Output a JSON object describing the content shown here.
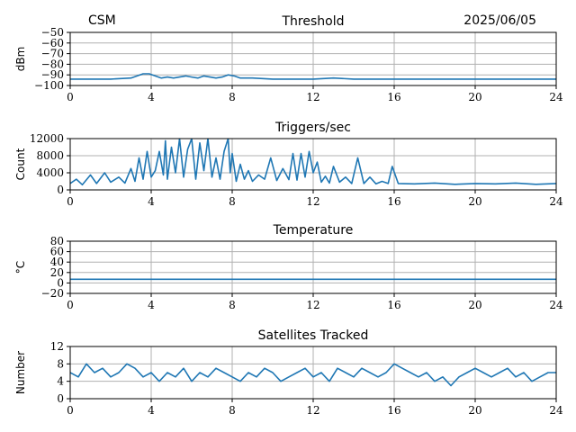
{
  "header": {
    "left": "CSM",
    "right": "2025/06/05"
  },
  "colors": {
    "series": "#1f77b4",
    "grid": "#b0b0b0"
  },
  "chart_data": [
    {
      "type": "line",
      "title": "Threshold",
      "ylabel": "dBm",
      "xlim": [
        0,
        24
      ],
      "ylim": [
        -100,
        -50
      ],
      "xticks": [
        0,
        4,
        8,
        12,
        16,
        20,
        24
      ],
      "yticks": [
        -100,
        -90,
        -80,
        -70,
        -60,
        -50
      ],
      "grid": true,
      "series": [
        {
          "x": [
            0,
            1,
            2,
            3,
            3.3,
            3.6,
            3.9,
            4.2,
            4.5,
            4.8,
            5.1,
            5.4,
            5.7,
            6.0,
            6.3,
            6.6,
            6.9,
            7.2,
            7.5,
            7.8,
            8.1,
            8.4,
            8.7,
            9,
            10,
            11,
            12,
            13,
            14,
            16,
            18,
            20,
            22,
            24
          ],
          "y": [
            -94,
            -94,
            -94,
            -93,
            -91,
            -89,
            -89,
            -91,
            -93,
            -92,
            -93,
            -92,
            -91,
            -92,
            -93,
            -91,
            -92,
            -93,
            -92,
            -90,
            -91,
            -93,
            -93,
            -93,
            -94,
            -94,
            -94,
            -93,
            -94,
            -94,
            -94,
            -94,
            -94,
            -94
          ]
        }
      ]
    },
    {
      "type": "line",
      "title": "Triggers/sec",
      "ylabel": "Count",
      "xlim": [
        0,
        24
      ],
      "ylim": [
        0,
        12000
      ],
      "xticks": [
        0,
        4,
        8,
        12,
        16,
        20,
        24
      ],
      "yticks": [
        0,
        4000,
        8000,
        12000
      ],
      "grid": true,
      "series": [
        {
          "x": [
            0,
            0.3,
            0.6,
            1.0,
            1.3,
            1.7,
            2.0,
            2.4,
            2.7,
            3.0,
            3.2,
            3.4,
            3.6,
            3.8,
            4.0,
            4.2,
            4.4,
            4.6,
            4.7,
            4.8,
            5.0,
            5.2,
            5.4,
            5.6,
            5.8,
            6.0,
            6.2,
            6.4,
            6.6,
            6.8,
            7.0,
            7.2,
            7.4,
            7.6,
            7.8,
            7.9,
            8.0,
            8.2,
            8.4,
            8.6,
            8.8,
            9.0,
            9.3,
            9.6,
            9.9,
            10.2,
            10.5,
            10.8,
            11.0,
            11.2,
            11.4,
            11.6,
            11.8,
            12.0,
            12.2,
            12.4,
            12.6,
            12.8,
            13.0,
            13.3,
            13.6,
            13.9,
            14.2,
            14.5,
            14.8,
            15.1,
            15.4,
            15.7,
            15.9,
            16.2,
            17,
            18,
            19,
            20,
            21,
            22,
            23,
            24
          ],
          "y": [
            1500,
            2500,
            1200,
            3500,
            1500,
            4000,
            1800,
            3000,
            1600,
            5000,
            2000,
            7500,
            2500,
            9000,
            3000,
            4500,
            9000,
            3500,
            11500,
            2500,
            10000,
            4000,
            12000,
            3000,
            9500,
            12000,
            2500,
            11000,
            4500,
            12000,
            3000,
            7500,
            2500,
            9000,
            12000,
            4000,
            8500,
            2000,
            6000,
            2500,
            4500,
            2000,
            3500,
            2500,
            7500,
            2200,
            5000,
            2400,
            8500,
            2300,
            8500,
            3000,
            9000,
            4000,
            6500,
            1800,
            3200,
            1600,
            5500,
            1800,
            3000,
            1500,
            7500,
            1500,
            3000,
            1400,
            2000,
            1500,
            5500,
            1500,
            1400,
            1600,
            1300,
            1500,
            1400,
            1600,
            1300,
            1500
          ]
        }
      ]
    },
    {
      "type": "line",
      "title": "Temperature",
      "ylabel": "°C",
      "xlim": [
        0,
        24
      ],
      "ylim": [
        -20,
        80
      ],
      "xticks": [
        0,
        4,
        8,
        12,
        16,
        20,
        24
      ],
      "yticks": [
        -20,
        0,
        20,
        40,
        60,
        80
      ],
      "grid": true,
      "series": [
        {
          "x": [
            0,
            4,
            8,
            12,
            16,
            20,
            24
          ],
          "y": [
            7,
            7,
            7,
            7,
            7,
            7,
            7
          ]
        }
      ]
    },
    {
      "type": "line",
      "title": "Satellites Tracked",
      "ylabel": "Number",
      "xlim": [
        0,
        24
      ],
      "ylim": [
        0,
        12
      ],
      "xticks": [
        0,
        4,
        8,
        12,
        16,
        20,
        24
      ],
      "yticks": [
        0,
        4,
        8,
        12
      ],
      "grid": true,
      "series": [
        {
          "x": [
            0,
            0.4,
            0.8,
            1.2,
            1.6,
            2.0,
            2.4,
            2.8,
            3.2,
            3.6,
            4.0,
            4.4,
            4.8,
            5.2,
            5.6,
            6.0,
            6.4,
            6.8,
            7.2,
            7.6,
            8.0,
            8.4,
            8.8,
            9.2,
            9.6,
            10.0,
            10.4,
            10.8,
            11.2,
            11.6,
            12.0,
            12.4,
            12.8,
            13.2,
            13.6,
            14.0,
            14.4,
            14.8,
            15.2,
            15.6,
            16.0,
            16.4,
            16.8,
            17.2,
            17.6,
            18.0,
            18.4,
            18.8,
            19.2,
            19.6,
            20.0,
            20.4,
            20.8,
            21.2,
            21.6,
            22.0,
            22.4,
            22.8,
            23.2,
            23.6,
            24.0
          ],
          "y": [
            6,
            5,
            8,
            6,
            7,
            5,
            6,
            8,
            7,
            5,
            6,
            4,
            6,
            5,
            7,
            4,
            6,
            5,
            7,
            6,
            5,
            4,
            6,
            5,
            7,
            6,
            4,
            5,
            6,
            7,
            5,
            6,
            4,
            7,
            6,
            5,
            7,
            6,
            5,
            6,
            8,
            7,
            6,
            5,
            6,
            4,
            5,
            3,
            5,
            6,
            7,
            6,
            5,
            6,
            7,
            5,
            6,
            4,
            5,
            6,
            6
          ]
        }
      ]
    }
  ]
}
